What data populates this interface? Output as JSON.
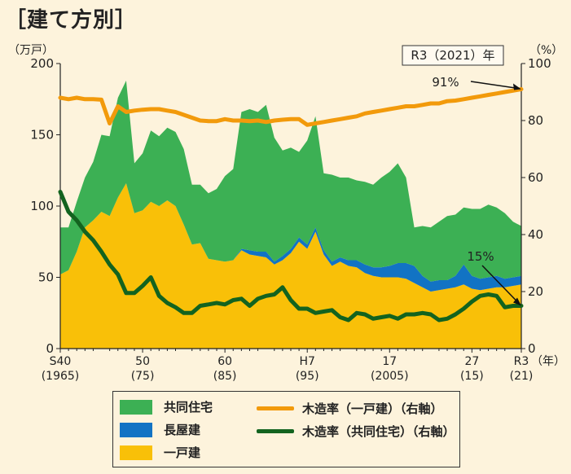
{
  "page_title": "［建て方別］",
  "colors": {
    "background": "#fdf3dc",
    "kyodo": "#3cb054",
    "nagaya": "#1273c4",
    "ikko": "#f9c008",
    "ikko_rate": "#f29a0b",
    "kyodo_rate": "#13631f"
  },
  "chart_data": {
    "type": "area",
    "x": [
      1965,
      1966,
      1967,
      1968,
      1969,
      1970,
      1971,
      1972,
      1973,
      1974,
      1975,
      1976,
      1977,
      1978,
      1979,
      1980,
      1981,
      1982,
      1983,
      1984,
      1985,
      1986,
      1987,
      1988,
      1989,
      1990,
      1991,
      1992,
      1993,
      1994,
      1995,
      1996,
      1997,
      1998,
      1999,
      2000,
      2001,
      2002,
      2003,
      2004,
      2005,
      2006,
      2007,
      2008,
      2009,
      2010,
      2011,
      2012,
      2013,
      2014,
      2015,
      2016,
      2017,
      2018,
      2019,
      2020,
      2021
    ],
    "ylabel_left": "（万戸）",
    "ylabel_right": "（%）",
    "ylim_left": [
      0,
      200
    ],
    "ylim_right": [
      0,
      100
    ],
    "yticks_left": [
      "0",
      "50",
      "100",
      "150",
      "200"
    ],
    "yticks_right": [
      "0",
      "20",
      "40",
      "60",
      "80",
      "100"
    ],
    "x_ticks": [
      {
        "x": 1965,
        "label1": "S40",
        "label2": "(1965)"
      },
      {
        "x": 1975,
        "label1": "50",
        "label2": "(75)"
      },
      {
        "x": 1985,
        "label1": "60",
        "label2": "(85)"
      },
      {
        "x": 1995,
        "label1": "H7",
        "label2": "(95)"
      },
      {
        "x": 2005,
        "label1": "17",
        "label2": "(2005)"
      },
      {
        "x": 2015,
        "label1": "27",
        "label2": "(15)"
      },
      {
        "x": 2021,
        "label1": "R3",
        "label2": "(21)"
      }
    ],
    "x_unit": "（年）",
    "stacked_series": [
      {
        "name": "一戸建",
        "key": "ikko",
        "values": [
          52,
          55,
          68,
          85,
          90,
          96,
          93,
          106,
          116,
          95,
          97,
          103,
          100,
          104,
          100,
          87,
          73,
          74,
          63,
          62,
          61,
          62,
          69,
          66,
          65,
          64,
          59,
          62,
          67,
          75,
          70,
          82,
          66,
          58,
          61,
          58,
          57,
          53,
          51,
          50,
          50,
          50,
          49,
          46,
          43,
          40,
          41,
          42,
          43,
          45,
          42,
          41,
          42,
          43,
          43,
          44,
          45
        ]
      },
      {
        "name": "長屋建",
        "key": "nagaya",
        "values": [
          0,
          0,
          0,
          0,
          0,
          0,
          0,
          0,
          0,
          0,
          0,
          0,
          0,
          0,
          0,
          0,
          0,
          0,
          0,
          0,
          0,
          0,
          1,
          3,
          3,
          4,
          2,
          3,
          3,
          3,
          3,
          3,
          3,
          3,
          3,
          4,
          5,
          6,
          6,
          7,
          8,
          10,
          11,
          12,
          8,
          7,
          7,
          6,
          8,
          14,
          9,
          8,
          8,
          8,
          6,
          6,
          6
        ]
      },
      {
        "name": "共同住宅",
        "key": "kyodo",
        "values": [
          33,
          30,
          35,
          35,
          41,
          54,
          56,
          70,
          72,
          35,
          40,
          50,
          49,
          51,
          52,
          53,
          42,
          41,
          46,
          50,
          60,
          64,
          96,
          99,
          98,
          103,
          87,
          74,
          71,
          60,
          73,
          78,
          54,
          61,
          56,
          58,
          56,
          58,
          58,
          63,
          66,
          70,
          60,
          27,
          35,
          38,
          41,
          45,
          43,
          40,
          47,
          49,
          51,
          48,
          46,
          39,
          35
        ]
      }
    ],
    "line_series": [
      {
        "name": "木造率（一戸建）（右軸）",
        "key": "ikko_rate",
        "values": [
          88,
          87.5,
          88,
          87.5,
          87.5,
          87.3,
          79,
          85,
          83,
          83.5,
          83.8,
          84,
          84,
          83.5,
          83,
          82,
          81,
          80,
          79.8,
          79.8,
          80.5,
          80,
          80,
          79.8,
          80,
          79.5,
          80,
          80.3,
          80.5,
          80.5,
          78.5,
          79,
          79.5,
          80,
          80.5,
          81,
          81.5,
          82.5,
          83,
          83.5,
          84,
          84.5,
          85,
          85,
          85.5,
          86,
          86,
          86.8,
          87,
          87.5,
          88,
          88.5,
          89,
          89.5,
          90,
          90.5,
          91
        ]
      },
      {
        "name": "木造率（共同住宅）（右軸）",
        "key": "kyodo_rate",
        "values": [
          55,
          48,
          45,
          41,
          38,
          34,
          29.5,
          26,
          19.5,
          19.5,
          22,
          25,
          18.5,
          16,
          14.5,
          12.5,
          12.5,
          15,
          15.5,
          16,
          15.5,
          17,
          17.5,
          15,
          17.5,
          18.5,
          19,
          21.5,
          17,
          14,
          14,
          12.5,
          13,
          13.5,
          11,
          10,
          12.5,
          12,
          10.5,
          11,
          11.5,
          10.5,
          12,
          12,
          12.5,
          12,
          10,
          10.5,
          12,
          14,
          16.5,
          18.5,
          19,
          18.5,
          14.5,
          15,
          15
        ]
      }
    ],
    "annotations": [
      {
        "text": "R3（2021）年",
        "boxed": true
      },
      {
        "text": "91%",
        "series": "ikko_rate",
        "x": 2021,
        "y": 91
      },
      {
        "text": "15%",
        "series": "kyodo_rate",
        "x": 2021,
        "y": 15
      }
    ],
    "legend_position": "bottom"
  },
  "legend": [
    {
      "label": "共同住宅",
      "kind": "box",
      "key": "kyodo"
    },
    {
      "label": "長屋建",
      "kind": "box",
      "key": "nagaya"
    },
    {
      "label": "一戸建",
      "kind": "box",
      "key": "ikko"
    },
    {
      "label": "木造率（一戸建）（右軸）",
      "kind": "line",
      "key": "ikko_rate"
    },
    {
      "label": "木造率（共同住宅）（右軸）",
      "kind": "line",
      "key": "kyodo_rate"
    }
  ]
}
